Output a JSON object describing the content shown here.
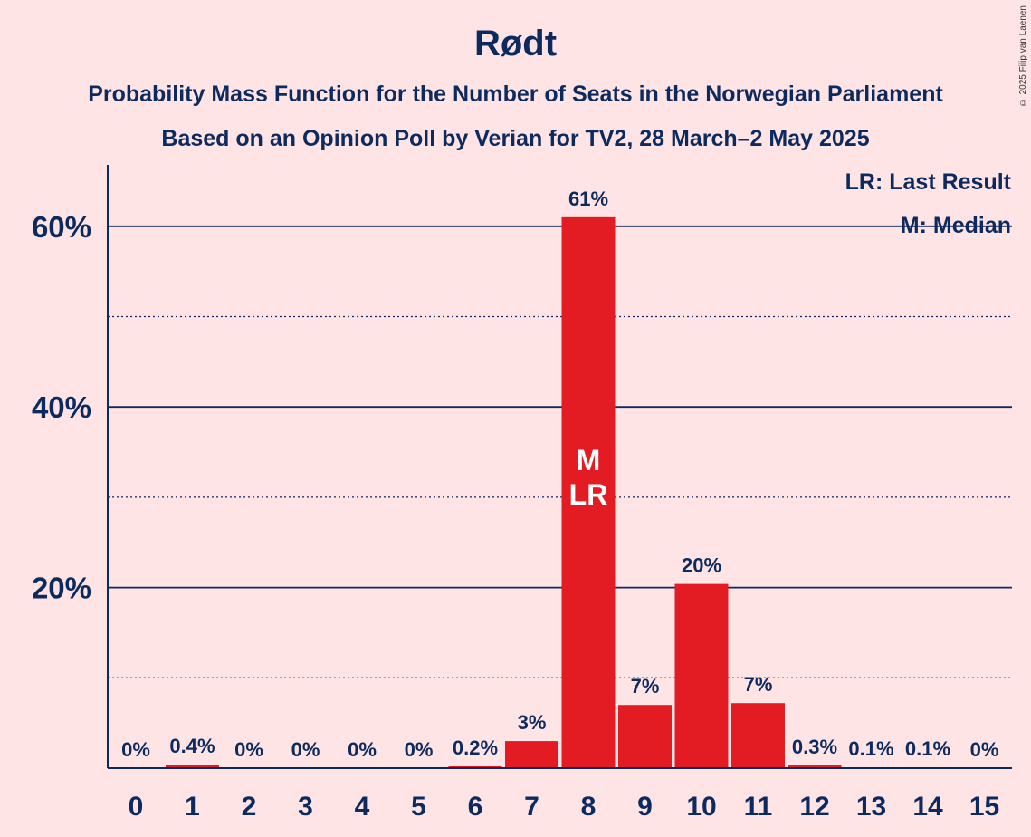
{
  "copyright": "© 2025 Filip van Laenen",
  "colors": {
    "background": "#ffe4e6",
    "bar": "#e31c23",
    "text": "#0d2a5e"
  },
  "chart_data": {
    "type": "bar",
    "title": "Rødt",
    "subtitle": "Probability Mass Function for the Number of Seats in the Norwegian Parliament",
    "subtitle2": "Based on an Opinion Poll by Verian for TV2, 28 March–2 May 2025",
    "categories": [
      "0",
      "1",
      "2",
      "3",
      "4",
      "5",
      "6",
      "7",
      "8",
      "9",
      "10",
      "11",
      "12",
      "13",
      "14",
      "15"
    ],
    "values": [
      0,
      0.4,
      0,
      0,
      0,
      0,
      0.2,
      3,
      61,
      7,
      20.4,
      7.2,
      0.3,
      0.1,
      0.1,
      0
    ],
    "value_labels": [
      "0%",
      "0.4%",
      "0%",
      "0%",
      "0%",
      "0%",
      "0.2%",
      "3%",
      "61%",
      "7%",
      "20%",
      "7%",
      "0.3%",
      "0.1%",
      "0.1%",
      "0%"
    ],
    "ylim": [
      0,
      66
    ],
    "yticks": [
      {
        "value": 20,
        "label": "20%"
      },
      {
        "value": 40,
        "label": "40%"
      },
      {
        "value": 60,
        "label": "60%"
      }
    ],
    "minor_gridlines": [
      10,
      30,
      50
    ],
    "legend": [
      "LR: Last Result",
      "M: Median"
    ],
    "legend_position": "top-right",
    "markers": {
      "category": "8",
      "lines": [
        "M",
        "LR"
      ]
    }
  }
}
